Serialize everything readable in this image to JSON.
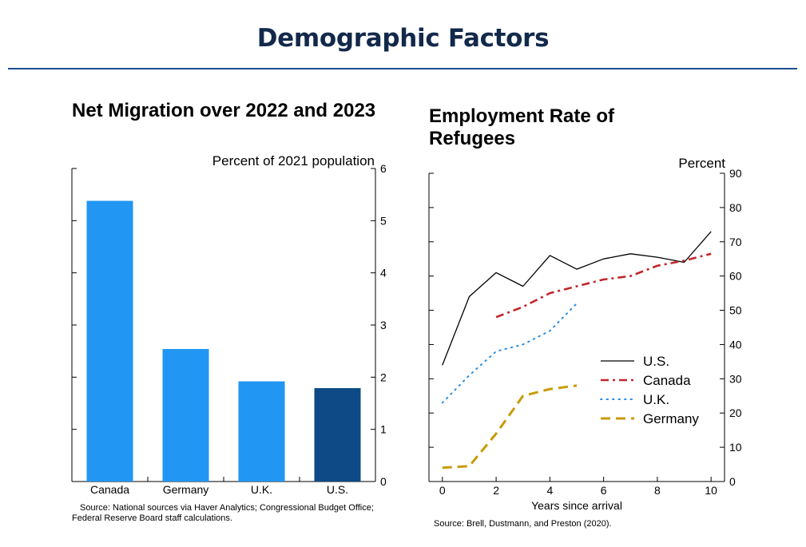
{
  "slide": {
    "title": "Demographic Factors"
  },
  "left_chart": {
    "title": "Net Migration over 2022 and 2023",
    "source": "Source: National sources via Haver Analytics; Congressional Budget Office; Federal Reserve Board staff calculations."
  },
  "right_chart": {
    "title": "Employment Rate of Refugees",
    "source": "Source: Brell, Dustmann, and Preston (2020)."
  },
  "colors": {
    "title": "#13294b",
    "rule": "#1b4f8c",
    "bar_light": "#2196f3",
    "bar_dark": "#0d4a86",
    "us_line": "#000000",
    "canada_line": "#c0272d",
    "uk_line": "#2a8ee0",
    "germany_line": "#c99a06"
  },
  "chart_data": [
    {
      "type": "bar",
      "title": "Net Migration over 2022 and 2023",
      "ylabel": "Percent of 2021 population",
      "categories": [
        "Canada",
        "Germany",
        "U.K.",
        "U.S."
      ],
      "values": [
        5.38,
        2.54,
        1.92,
        1.79
      ],
      "bar_colors": [
        "#2196f3",
        "#2196f3",
        "#2196f3",
        "#0d4a86"
      ],
      "ylim": [
        0,
        6
      ],
      "yticks": [
        0,
        1,
        2,
        3,
        4,
        5,
        6
      ],
      "y_axis_side": "right",
      "grid": false,
      "legend": "none"
    },
    {
      "type": "line",
      "title": "Employment Rate of Refugees",
      "ylabel": "Percent",
      "xlabel": "Years since arrival",
      "xlim": [
        -0.5,
        10.5
      ],
      "ylim": [
        0,
        90
      ],
      "xticks": [
        0,
        2,
        4,
        6,
        8,
        10
      ],
      "yticks": [
        0,
        10,
        20,
        30,
        40,
        50,
        60,
        70,
        80,
        90
      ],
      "y_axis_side": "right",
      "grid": false,
      "legend": "lower-right",
      "series": [
        {
          "name": "U.S.",
          "style": "solid",
          "color": "#000000",
          "x": [
            0,
            1,
            2,
            3,
            4,
            5,
            6,
            7,
            8,
            9,
            10
          ],
          "y": [
            34,
            54,
            61,
            57,
            66,
            62,
            65,
            66.5,
            65.5,
            64,
            73
          ]
        },
        {
          "name": "Canada",
          "style": "dashdot",
          "color": "#c0272d",
          "x": [
            2,
            3,
            4,
            5,
            6,
            7,
            8,
            9,
            10
          ],
          "y": [
            48,
            51,
            55,
            57,
            59,
            60,
            63,
            64.5,
            66.5
          ]
        },
        {
          "name": "U.K.",
          "style": "dotted",
          "color": "#2a8ee0",
          "x": [
            0,
            1,
            2,
            3,
            4,
            5
          ],
          "y": [
            23,
            31,
            38,
            40,
            44,
            52
          ]
        },
        {
          "name": "Germany",
          "style": "dashed",
          "color": "#c99a06",
          "x": [
            0,
            1,
            2,
            3,
            4,
            5
          ],
          "y": [
            4,
            4.5,
            14,
            25,
            27,
            28
          ]
        }
      ]
    }
  ]
}
